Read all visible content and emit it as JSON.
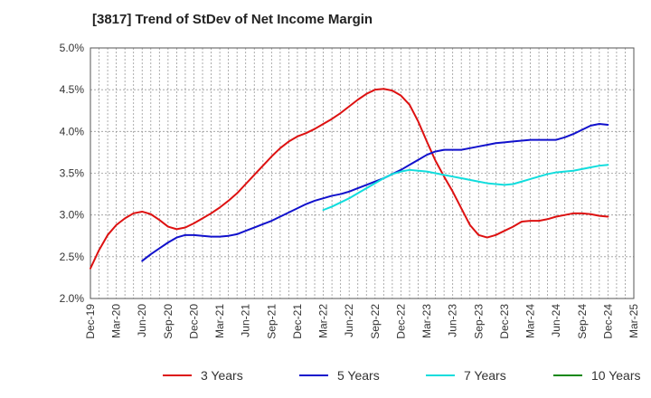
{
  "chart_data": {
    "type": "line",
    "title": "[3817]  Trend of StDev of Net Income Margin",
    "xlabel": "",
    "ylabel": "",
    "x_ticks": [
      "Dec-19",
      "Mar-20",
      "Jun-20",
      "Sep-20",
      "Dec-20",
      "Mar-21",
      "Jun-21",
      "Sep-21",
      "Dec-21",
      "Mar-22",
      "Jun-22",
      "Sep-22",
      "Dec-22",
      "Mar-23",
      "Jun-23",
      "Sep-23",
      "Dec-23",
      "Mar-24",
      "Jun-24",
      "Sep-24",
      "Dec-24",
      "Mar-25"
    ],
    "y_ticks": [
      "2.0%",
      "2.5%",
      "3.0%",
      "3.5%",
      "4.0%",
      "4.5%",
      "5.0%"
    ],
    "ylim": [
      2.0,
      5.0
    ],
    "grid": true,
    "legend_position": "bottom",
    "series": [
      {
        "name": "3 Years",
        "color": "#dd1111",
        "x": [
          "Dec-19",
          "Jan-20",
          "Feb-20",
          "Mar-20",
          "Apr-20",
          "May-20",
          "Jun-20",
          "Jul-20",
          "Aug-20",
          "Sep-20",
          "Oct-20",
          "Nov-20",
          "Dec-20",
          "Jan-21",
          "Feb-21",
          "Mar-21",
          "Apr-21",
          "May-21",
          "Jun-21",
          "Jul-21",
          "Aug-21",
          "Sep-21",
          "Oct-21",
          "Nov-21",
          "Dec-21",
          "Jan-22",
          "Feb-22",
          "Mar-22",
          "Apr-22",
          "May-22",
          "Jun-22",
          "Jul-22",
          "Aug-22",
          "Sep-22",
          "Oct-22",
          "Nov-22",
          "Dec-22",
          "Jan-23",
          "Feb-23",
          "Mar-23",
          "Apr-23",
          "May-23",
          "Jun-23",
          "Jul-23",
          "Aug-23",
          "Sep-23",
          "Oct-23",
          "Nov-23",
          "Dec-23",
          "Jan-24",
          "Feb-24",
          "Mar-24",
          "Apr-24",
          "May-24",
          "Jun-24",
          "Jul-24",
          "Aug-24",
          "Sep-24",
          "Oct-24",
          "Nov-24",
          "Dec-24"
        ],
        "values": [
          2.36,
          2.58,
          2.76,
          2.88,
          2.96,
          3.02,
          3.04,
          3.01,
          2.94,
          2.86,
          2.83,
          2.85,
          2.9,
          2.96,
          3.02,
          3.09,
          3.17,
          3.26,
          3.37,
          3.48,
          3.59,
          3.7,
          3.8,
          3.88,
          3.94,
          3.98,
          4.03,
          4.09,
          4.15,
          4.22,
          4.3,
          4.38,
          4.45,
          4.5,
          4.51,
          4.49,
          4.43,
          4.32,
          4.12,
          3.88,
          3.65,
          3.46,
          3.28,
          3.08,
          2.88,
          2.76,
          2.73,
          2.76,
          2.81,
          2.86,
          2.92,
          2.93,
          2.93,
          2.95,
          2.98,
          3.0,
          3.02,
          3.02,
          3.01,
          2.99,
          2.98
        ]
      },
      {
        "name": "5 Years",
        "color": "#1111cc",
        "x": [
          "Dec-19",
          "Jan-20",
          "Feb-20",
          "Mar-20",
          "Apr-20",
          "May-20",
          "Jun-20",
          "Jul-20",
          "Aug-20",
          "Sep-20",
          "Oct-20",
          "Nov-20",
          "Dec-20",
          "Jan-21",
          "Feb-21",
          "Mar-21",
          "Apr-21",
          "May-21",
          "Jun-21",
          "Jul-21",
          "Aug-21",
          "Sep-21",
          "Oct-21",
          "Nov-21",
          "Dec-21",
          "Jan-22",
          "Feb-22",
          "Mar-22",
          "Apr-22",
          "May-22",
          "Jun-22",
          "Jul-22",
          "Aug-22",
          "Sep-22",
          "Oct-22",
          "Nov-22",
          "Dec-22",
          "Jan-23",
          "Feb-23",
          "Mar-23",
          "Apr-23",
          "May-23",
          "Jun-23",
          "Jul-23",
          "Aug-23",
          "Sep-23",
          "Oct-23",
          "Nov-23",
          "Dec-23",
          "Jan-24",
          "Feb-24",
          "Mar-24",
          "Apr-24",
          "May-24",
          "Jun-24",
          "Jul-24",
          "Aug-24",
          "Sep-24",
          "Oct-24",
          "Nov-24",
          "Dec-24"
        ],
        "values": [
          null,
          null,
          null,
          null,
          null,
          null,
          2.45,
          2.53,
          2.6,
          2.67,
          2.73,
          2.76,
          2.76,
          2.75,
          2.74,
          2.74,
          2.75,
          2.77,
          2.81,
          2.85,
          2.89,
          2.93,
          2.98,
          3.03,
          3.08,
          3.13,
          3.17,
          3.2,
          3.23,
          3.25,
          3.28,
          3.32,
          3.36,
          3.4,
          3.44,
          3.49,
          3.54,
          3.6,
          3.66,
          3.72,
          3.76,
          3.78,
          3.78,
          3.78,
          3.8,
          3.82,
          3.84,
          3.86,
          3.87,
          3.88,
          3.89,
          3.9,
          3.9,
          3.9,
          3.9,
          3.93,
          3.97,
          4.02,
          4.07,
          4.09,
          4.08
        ]
      },
      {
        "name": "7 Years",
        "color": "#11dddd",
        "x": [
          "Mar-22",
          "Apr-22",
          "May-22",
          "Jun-22",
          "Jul-22",
          "Aug-22",
          "Sep-22",
          "Oct-22",
          "Nov-22",
          "Dec-22",
          "Jan-23",
          "Feb-23",
          "Mar-23",
          "Apr-23",
          "May-23",
          "Jun-23",
          "Jul-23",
          "Aug-23",
          "Sep-23",
          "Oct-23",
          "Nov-23",
          "Dec-23",
          "Jan-24",
          "Feb-24",
          "Mar-24",
          "Apr-24",
          "May-24",
          "Jun-24",
          "Jul-24",
          "Aug-24",
          "Sep-24",
          "Oct-24",
          "Nov-24",
          "Dec-24"
        ],
        "values": [
          3.06,
          3.1,
          3.15,
          3.2,
          3.26,
          3.32,
          3.38,
          3.44,
          3.49,
          3.52,
          3.54,
          3.53,
          3.52,
          3.5,
          3.48,
          3.46,
          3.44,
          3.42,
          3.4,
          3.38,
          3.37,
          3.36,
          3.37,
          3.4,
          3.43,
          3.46,
          3.49,
          3.51,
          3.52,
          3.53,
          3.55,
          3.57,
          3.59,
          3.6
        ]
      },
      {
        "name": "10 Years",
        "color": "#118811",
        "x": [],
        "values": []
      }
    ]
  }
}
